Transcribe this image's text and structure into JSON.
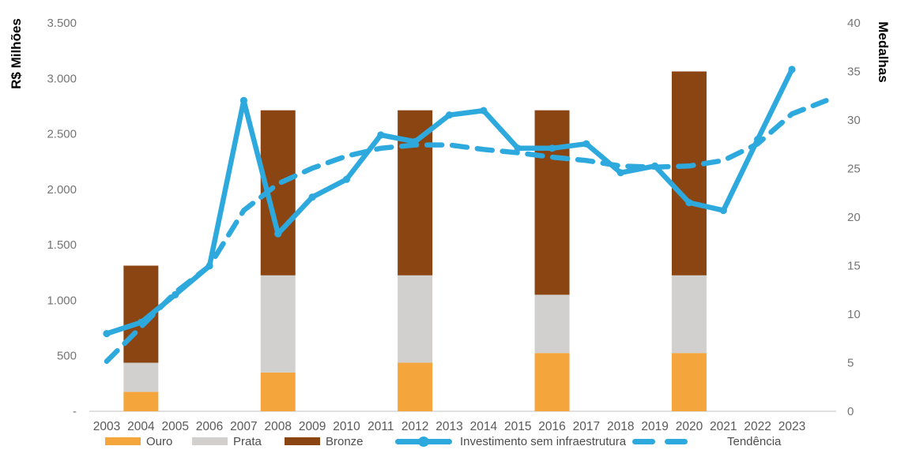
{
  "chart_data": {
    "type": "combo-bar-line",
    "years": [
      "2003",
      "2004",
      "2005",
      "2006",
      "2007",
      "2008",
      "2009",
      "2010",
      "2011",
      "2012",
      "2013",
      "2014",
      "2015",
      "2016",
      "2017",
      "2018",
      "2019",
      "2020",
      "2021",
      "2022",
      "2023"
    ],
    "left_axis": {
      "title": "R$ Milhões",
      "tick_labels": [
        "3.500",
        "3.000",
        "2.500",
        "2.000",
        "1.500",
        "1.000",
        "500",
        "-"
      ],
      "tick_values": [
        3500,
        3000,
        2500,
        2000,
        1500,
        1000,
        500,
        0
      ],
      "min": 0,
      "max": 3500
    },
    "right_axis": {
      "title": "Medalhas",
      "tick_labels": [
        "40",
        "35",
        "30",
        "25",
        "20",
        "15",
        "10",
        "5",
        "0"
      ],
      "tick_values": [
        40,
        35,
        30,
        25,
        20,
        15,
        10,
        5,
        0
      ],
      "min": 0,
      "max": 40
    },
    "bars": {
      "axis": "right",
      "olympic_years": [
        "2004",
        "2008",
        "2012",
        "2016",
        "2020"
      ],
      "series": [
        {
          "name": "Ouro",
          "color": "#F4A63C",
          "values": [
            2,
            4,
            5,
            6,
            6
          ]
        },
        {
          "name": "Prata",
          "color": "#D1D0CE",
          "values": [
            3,
            10,
            9,
            6,
            8
          ]
        },
        {
          "name": "Bronze",
          "color": "#8B4513",
          "values": [
            10,
            17,
            17,
            19,
            21
          ]
        }
      ],
      "totals": [
        15,
        31,
        31,
        31,
        35
      ]
    },
    "lines": [
      {
        "name": "Investimento sem infraestrutura",
        "axis": "left",
        "style": "solid",
        "color": "#2EA9DE",
        "has_markers": true,
        "values": [
          700,
          800,
          1050,
          1310,
          2800,
          1600,
          1930,
          2090,
          2490,
          2430,
          2670,
          2710,
          2370,
          2370,
          2410,
          2150,
          2210,
          1880,
          1810,
          2450,
          3080
        ]
      },
      {
        "name": "Tendência",
        "axis": "left",
        "style": "dashed",
        "color": "#2EA9DE",
        "has_markers": false,
        "values": [
          450,
          760,
          1070,
          1310,
          1810,
          2050,
          2190,
          2300,
          2370,
          2400,
          2400,
          2360,
          2330,
          2290,
          2260,
          2210,
          2200,
          2210,
          2260,
          2410,
          2680
        ],
        "extension_value": 2800
      }
    ],
    "grid": "off",
    "legend_position": "bottom"
  },
  "colors": {
    "axis_line": "#D6D6D6",
    "y_tick_text": "#757575",
    "x_tick_text": "#595959",
    "legend_text": "#4d4d4d"
  }
}
